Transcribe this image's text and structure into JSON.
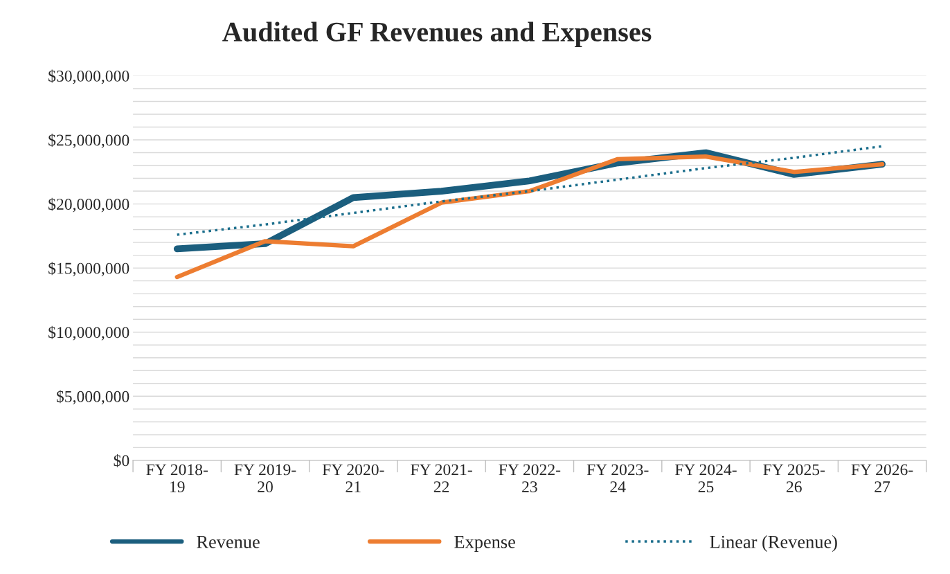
{
  "chart_data": {
    "type": "line",
    "title": "Audited GF Revenues and Expenses",
    "categories": [
      "FY 2018-\n19",
      "FY 2019-\n20",
      "FY 2020-\n21",
      "FY 2021-\n22",
      "FY 2022-\n23",
      "FY 2023-\n24",
      "FY 2024-\n25",
      "FY 2025-\n26",
      "FY 2026-\n27"
    ],
    "series": [
      {
        "name": "Revenue",
        "color": "#1b5e7e",
        "line_style": "solid",
        "values": [
          16500000,
          16900000,
          20500000,
          21000000,
          21800000,
          23200000,
          24000000,
          22300000,
          23100000
        ]
      },
      {
        "name": "Expense",
        "color": "#ed7d31",
        "line_style": "solid",
        "values": [
          14300000,
          17100000,
          16700000,
          20100000,
          21000000,
          23500000,
          23700000,
          22500000,
          23100000
        ]
      },
      {
        "name": "Linear (Revenue)",
        "color": "#1b6e8c",
        "line_style": "dotted",
        "values": [
          17600000,
          18400000,
          19300000,
          20200000,
          21000000,
          21900000,
          22800000,
          23600000,
          24500000
        ]
      }
    ],
    "ylim": [
      0,
      30000000
    ],
    "yticks": [
      {
        "value": 0,
        "label": "$0"
      },
      {
        "value": 1000000,
        "label": null
      },
      {
        "value": 2000000,
        "label": null
      },
      {
        "value": 3000000,
        "label": null
      },
      {
        "value": 4000000,
        "label": null
      },
      {
        "value": 5000000,
        "label": "$5,000,000"
      },
      {
        "value": 6000000,
        "label": null
      },
      {
        "value": 7000000,
        "label": null
      },
      {
        "value": 8000000,
        "label": null
      },
      {
        "value": 9000000,
        "label": null
      },
      {
        "value": 10000000,
        "label": "$10,000,000"
      },
      {
        "value": 11000000,
        "label": null
      },
      {
        "value": 12000000,
        "label": null
      },
      {
        "value": 13000000,
        "label": null
      },
      {
        "value": 14000000,
        "label": null
      },
      {
        "value": 15000000,
        "label": "$15,000,000"
      },
      {
        "value": 16000000,
        "label": null
      },
      {
        "value": 17000000,
        "label": null
      },
      {
        "value": 18000000,
        "label": null
      },
      {
        "value": 19000000,
        "label": null
      },
      {
        "value": 20000000,
        "label": "$20,000,000"
      },
      {
        "value": 21000000,
        "label": null
      },
      {
        "value": 22000000,
        "label": null
      },
      {
        "value": 23000000,
        "label": null
      },
      {
        "value": 24000000,
        "label": null
      },
      {
        "value": 25000000,
        "label": "$25,000,000"
      },
      {
        "value": 26000000,
        "label": null
      },
      {
        "value": 27000000,
        "label": null
      },
      {
        "value": 28000000,
        "label": null
      },
      {
        "value": 29000000,
        "label": null
      },
      {
        "value": 30000000,
        "label": "$30,000,000"
      }
    ],
    "grid": "y",
    "legend": "bottom",
    "marker": "none"
  }
}
